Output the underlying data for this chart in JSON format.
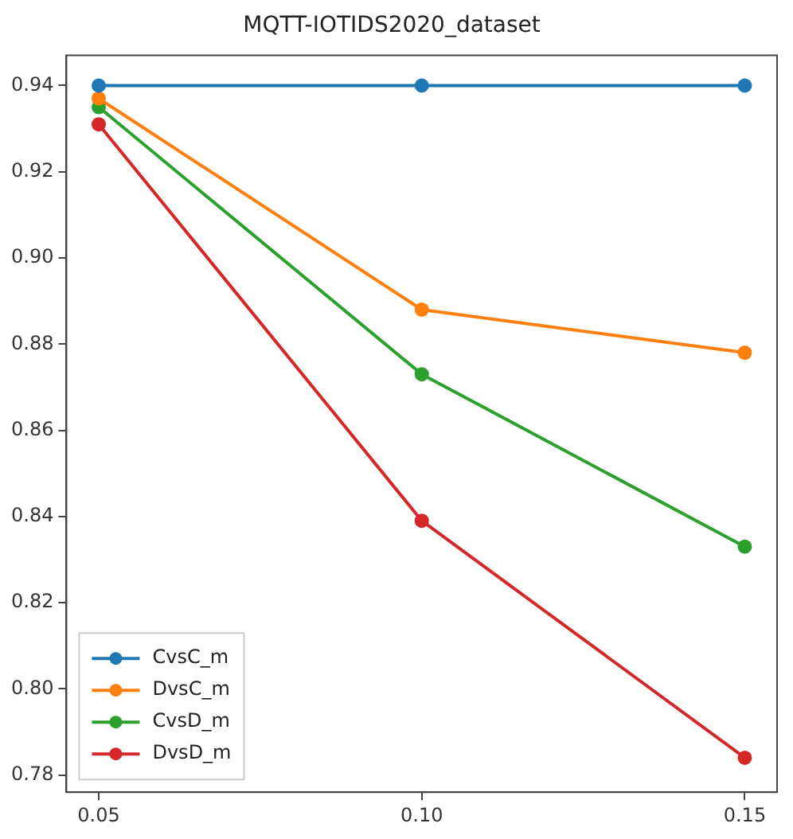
{
  "chart_data": {
    "type": "line",
    "title": "MQTT-IOTIDS2020_dataset",
    "x": [
      0.05,
      0.1,
      0.15
    ],
    "xlim": [
      0.045,
      0.155
    ],
    "xticks": [
      {
        "value": 0.05,
        "label": "0.05"
      },
      {
        "value": 0.1,
        "label": "0.10"
      },
      {
        "value": 0.15,
        "label": "0.15"
      }
    ],
    "ylim": [
      0.776,
      0.947
    ],
    "yticks": [
      {
        "value": 0.78,
        "label": "0.78"
      },
      {
        "value": 0.8,
        "label": "0.80"
      },
      {
        "value": 0.82,
        "label": "0.82"
      },
      {
        "value": 0.84,
        "label": "0.84"
      },
      {
        "value": 0.86,
        "label": "0.86"
      },
      {
        "value": 0.88,
        "label": "0.88"
      },
      {
        "value": 0.9,
        "label": "0.90"
      },
      {
        "value": 0.92,
        "label": "0.92"
      },
      {
        "value": 0.94,
        "label": "0.94"
      }
    ],
    "grid": false,
    "legend": "bottom left",
    "marker": "circle",
    "line_style": "solid",
    "series": [
      {
        "name": "CvsC_m",
        "color": "#1f77b4",
        "values": [
          0.94,
          0.94,
          0.94
        ]
      },
      {
        "name": "DvsC_m",
        "color": "#ff7f0e",
        "values": [
          0.937,
          0.888,
          0.878
        ]
      },
      {
        "name": "CvsD_m",
        "color": "#2ca02c",
        "values": [
          0.935,
          0.873,
          0.833
        ]
      },
      {
        "name": "DvsD_m",
        "color": "#d62728",
        "values": [
          0.931,
          0.839,
          0.784
        ]
      }
    ]
  }
}
